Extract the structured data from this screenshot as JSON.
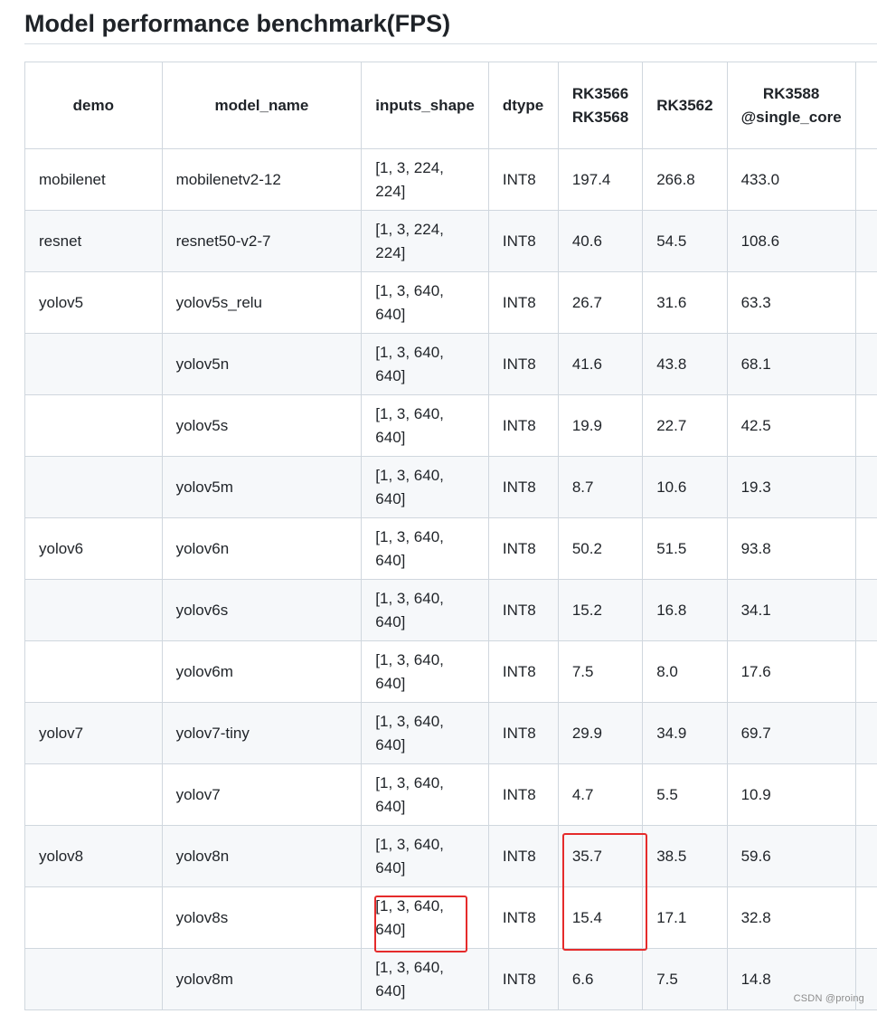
{
  "title": "Model performance benchmark(FPS)",
  "table": {
    "headers": {
      "demo": "demo",
      "model_name": "model_name",
      "inputs_shape": "inputs_shape",
      "dtype": "dtype",
      "rk3566_line1": "RK3566",
      "rk3566_line2": "RK3568",
      "rk3562": "RK3562",
      "rk3588_line1": "RK3588",
      "rk3588_line2": "@single_core"
    },
    "rows": [
      {
        "demo": "mobilenet",
        "model": "mobilenetv2-12",
        "shape1": "[1, 3, 224,",
        "shape2": "224]",
        "dtype": "INT8",
        "rk3566": "197.4",
        "rk3562": "266.8",
        "rk3588": "433.0"
      },
      {
        "demo": "resnet",
        "model": "resnet50-v2-7",
        "shape1": "[1, 3, 224,",
        "shape2": "224]",
        "dtype": "INT8",
        "rk3566": "40.6",
        "rk3562": "54.5",
        "rk3588": "108.6"
      },
      {
        "demo": "yolov5",
        "model": "yolov5s_relu",
        "shape1": "[1, 3, 640,",
        "shape2": "640]",
        "dtype": "INT8",
        "rk3566": "26.7",
        "rk3562": "31.6",
        "rk3588": "63.3"
      },
      {
        "demo": "",
        "model": "yolov5n",
        "shape1": "[1, 3, 640,",
        "shape2": "640]",
        "dtype": "INT8",
        "rk3566": "41.6",
        "rk3562": "43.8",
        "rk3588": "68.1"
      },
      {
        "demo": "",
        "model": "yolov5s",
        "shape1": "[1, 3, 640,",
        "shape2": "640]",
        "dtype": "INT8",
        "rk3566": "19.9",
        "rk3562": "22.7",
        "rk3588": "42.5"
      },
      {
        "demo": "",
        "model": "yolov5m",
        "shape1": "[1, 3, 640,",
        "shape2": "640]",
        "dtype": "INT8",
        "rk3566": "8.7",
        "rk3562": "10.6",
        "rk3588": "19.3"
      },
      {
        "demo": "yolov6",
        "model": "yolov6n",
        "shape1": "[1, 3, 640,",
        "shape2": "640]",
        "dtype": "INT8",
        "rk3566": "50.2",
        "rk3562": "51.5",
        "rk3588": "93.8"
      },
      {
        "demo": "",
        "model": "yolov6s",
        "shape1": "[1, 3, 640,",
        "shape2": "640]",
        "dtype": "INT8",
        "rk3566": "15.2",
        "rk3562": "16.8",
        "rk3588": "34.1"
      },
      {
        "demo": "",
        "model": "yolov6m",
        "shape1": "[1, 3, 640,",
        "shape2": "640]",
        "dtype": "INT8",
        "rk3566": "7.5",
        "rk3562": "8.0",
        "rk3588": "17.6"
      },
      {
        "demo": "yolov7",
        "model": "yolov7-tiny",
        "shape1": "[1, 3, 640,",
        "shape2": "640]",
        "dtype": "INT8",
        "rk3566": "29.9",
        "rk3562": "34.9",
        "rk3588": "69.7"
      },
      {
        "demo": "",
        "model": "yolov7",
        "shape1": "[1, 3, 640,",
        "shape2": "640]",
        "dtype": "INT8",
        "rk3566": "4.7",
        "rk3562": "5.5",
        "rk3588": "10.9"
      },
      {
        "demo": "yolov8",
        "model": "yolov8n",
        "shape1": "[1, 3, 640,",
        "shape2": "640]",
        "dtype": "INT8",
        "rk3566": "35.7",
        "rk3562": "38.5",
        "rk3588": "59.6"
      },
      {
        "demo": "",
        "model": "yolov8s",
        "shape1": "[1, 3, 640,",
        "shape2": "640]",
        "dtype": "INT8",
        "rk3566": "15.4",
        "rk3562": "17.1",
        "rk3588": "32.8"
      },
      {
        "demo": "",
        "model": "yolov8m",
        "shape1": "[1, 3, 640,",
        "shape2": "640]",
        "dtype": "INT8",
        "rk3566": "6.6",
        "rk3562": "7.5",
        "rk3588": "14.8"
      }
    ]
  },
  "highlight_color": "#e52b2b",
  "watermark": "CSDN @proing"
}
